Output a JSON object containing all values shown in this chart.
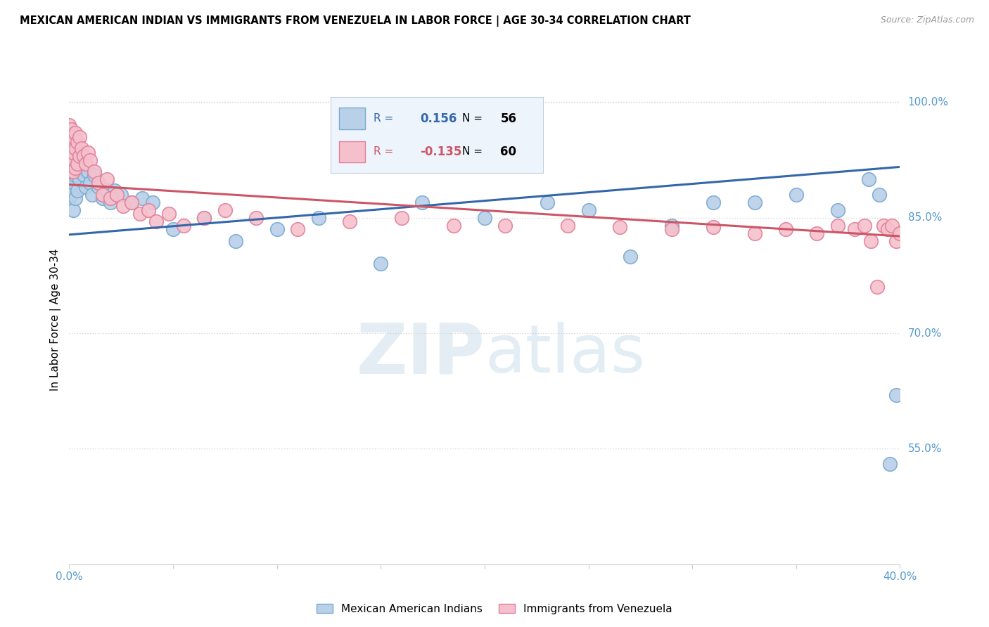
{
  "title": "MEXICAN AMERICAN INDIAN VS IMMIGRANTS FROM VENEZUELA IN LABOR FORCE | AGE 30-34 CORRELATION CHART",
  "source": "Source: ZipAtlas.com",
  "ylabel": "In Labor Force | Age 30-34",
  "xmin": 0.0,
  "xmax": 0.4,
  "ymin": 0.4,
  "ymax": 1.035,
  "yticks": [
    0.55,
    0.7,
    0.85,
    1.0
  ],
  "ytick_labels": [
    "55.0%",
    "70.0%",
    "85.0%",
    "100.0%"
  ],
  "xticks": [
    0.0,
    0.05,
    0.1,
    0.15,
    0.2,
    0.25,
    0.3,
    0.35,
    0.4
  ],
  "xtick_labels": [
    "0.0%",
    "",
    "",
    "",
    "",
    "",
    "",
    "",
    "40.0%"
  ],
  "blue_R": 0.156,
  "blue_N": 56,
  "pink_R": -0.135,
  "pink_N": 60,
  "blue_color": "#b8d0e8",
  "blue_edge": "#7aaad0",
  "pink_color": "#f5c0cc",
  "pink_edge": "#e0809a",
  "blue_line_color": "#3366aa",
  "pink_line_color": "#cc5566",
  "watermark_zip": "#c8d8e8",
  "watermark_atlas": "#b8cce0",
  "background_color": "#ffffff",
  "grid_color": "#d8d8d8",
  "tick_color": "#5599cc",
  "blue_scatter_x": [
    0.0,
    0.0,
    0.0,
    0.0,
    0.0,
    0.001,
    0.001,
    0.001,
    0.001,
    0.002,
    0.002,
    0.002,
    0.002,
    0.003,
    0.003,
    0.003,
    0.004,
    0.004,
    0.005,
    0.005,
    0.006,
    0.007,
    0.008,
    0.009,
    0.01,
    0.011,
    0.012,
    0.014,
    0.016,
    0.018,
    0.02,
    0.022,
    0.025,
    0.03,
    0.035,
    0.04,
    0.05,
    0.065,
    0.08,
    0.1,
    0.12,
    0.15,
    0.17,
    0.2,
    0.23,
    0.25,
    0.27,
    0.29,
    0.31,
    0.33,
    0.35,
    0.37,
    0.385,
    0.39,
    0.395,
    0.398
  ],
  "blue_scatter_y": [
    0.96,
    0.94,
    0.92,
    0.9,
    0.875,
    0.95,
    0.93,
    0.905,
    0.88,
    0.945,
    0.92,
    0.895,
    0.86,
    0.935,
    0.905,
    0.875,
    0.92,
    0.885,
    0.93,
    0.9,
    0.915,
    0.905,
    0.89,
    0.91,
    0.895,
    0.88,
    0.905,
    0.89,
    0.875,
    0.885,
    0.87,
    0.885,
    0.88,
    0.87,
    0.875,
    0.87,
    0.835,
    0.85,
    0.82,
    0.835,
    0.85,
    0.79,
    0.87,
    0.85,
    0.87,
    0.86,
    0.8,
    0.84,
    0.87,
    0.87,
    0.88,
    0.86,
    0.9,
    0.88,
    0.53,
    0.62
  ],
  "pink_scatter_x": [
    0.0,
    0.0,
    0.0,
    0.0,
    0.001,
    0.001,
    0.001,
    0.002,
    0.002,
    0.002,
    0.003,
    0.003,
    0.003,
    0.004,
    0.004,
    0.005,
    0.005,
    0.006,
    0.007,
    0.008,
    0.009,
    0.01,
    0.012,
    0.014,
    0.016,
    0.018,
    0.02,
    0.023,
    0.026,
    0.03,
    0.034,
    0.038,
    0.042,
    0.048,
    0.055,
    0.065,
    0.075,
    0.09,
    0.11,
    0.135,
    0.16,
    0.185,
    0.21,
    0.24,
    0.265,
    0.29,
    0.31,
    0.33,
    0.345,
    0.36,
    0.37,
    0.378,
    0.383,
    0.386,
    0.389,
    0.392,
    0.394,
    0.396,
    0.398,
    0.4
  ],
  "pink_scatter_y": [
    0.97,
    0.95,
    0.93,
    0.91,
    0.965,
    0.945,
    0.92,
    0.955,
    0.935,
    0.91,
    0.96,
    0.94,
    0.915,
    0.948,
    0.92,
    0.955,
    0.93,
    0.94,
    0.93,
    0.92,
    0.935,
    0.925,
    0.91,
    0.895,
    0.88,
    0.9,
    0.875,
    0.88,
    0.865,
    0.87,
    0.855,
    0.86,
    0.845,
    0.855,
    0.84,
    0.85,
    0.86,
    0.85,
    0.835,
    0.845,
    0.85,
    0.84,
    0.84,
    0.84,
    0.838,
    0.835,
    0.838,
    0.83,
    0.835,
    0.83,
    0.84,
    0.835,
    0.84,
    0.82,
    0.76,
    0.84,
    0.835,
    0.84,
    0.82,
    0.83
  ],
  "blue_line_x0": 0.0,
  "blue_line_y0": 0.828,
  "blue_line_x1": 0.4,
  "blue_line_y1": 0.916,
  "pink_line_x0": 0.0,
  "pink_line_y0": 0.893,
  "pink_line_x1": 0.4,
  "pink_line_y1": 0.826
}
